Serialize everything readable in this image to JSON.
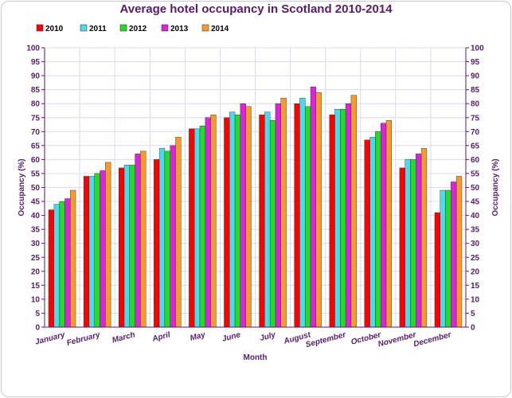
{
  "chart_data": {
    "type": "bar",
    "title": "Average hotel occupancy in Scotland 2010-2014",
    "xlabel": "Month",
    "ylabel": "Occupancy (%)",
    "ylabel_right": "Occupancy (%)",
    "ylim": [
      0,
      100
    ],
    "ytick_step": 5,
    "grid": true,
    "legend_position": "top-left",
    "categories": [
      "January",
      "February",
      "March",
      "April",
      "May",
      "June",
      "July",
      "August",
      "September",
      "October",
      "November",
      "December"
    ],
    "series": [
      {
        "name": "2010",
        "color": "#ff0000",
        "values": [
          42,
          54,
          57,
          60,
          71,
          75,
          76,
          80,
          76,
          67,
          57,
          41
        ]
      },
      {
        "name": "2011",
        "color": "#4dd9ec",
        "values": [
          44,
          54,
          58,
          64,
          71,
          77,
          77,
          82,
          78,
          68,
          60,
          49
        ]
      },
      {
        "name": "2012",
        "color": "#22dd22",
        "values": [
          45,
          55,
          58,
          63,
          72,
          76,
          74,
          79,
          78,
          70,
          60,
          49
        ]
      },
      {
        "name": "2013",
        "color": "#dd22dd",
        "values": [
          46,
          56,
          62,
          65,
          75,
          80,
          80,
          86,
          80,
          73,
          62,
          52
        ]
      },
      {
        "name": "2014",
        "color": "#f79a2a",
        "values": [
          49,
          59,
          63,
          68,
          76,
          79,
          82,
          84,
          83,
          74,
          64,
          54
        ]
      }
    ]
  }
}
